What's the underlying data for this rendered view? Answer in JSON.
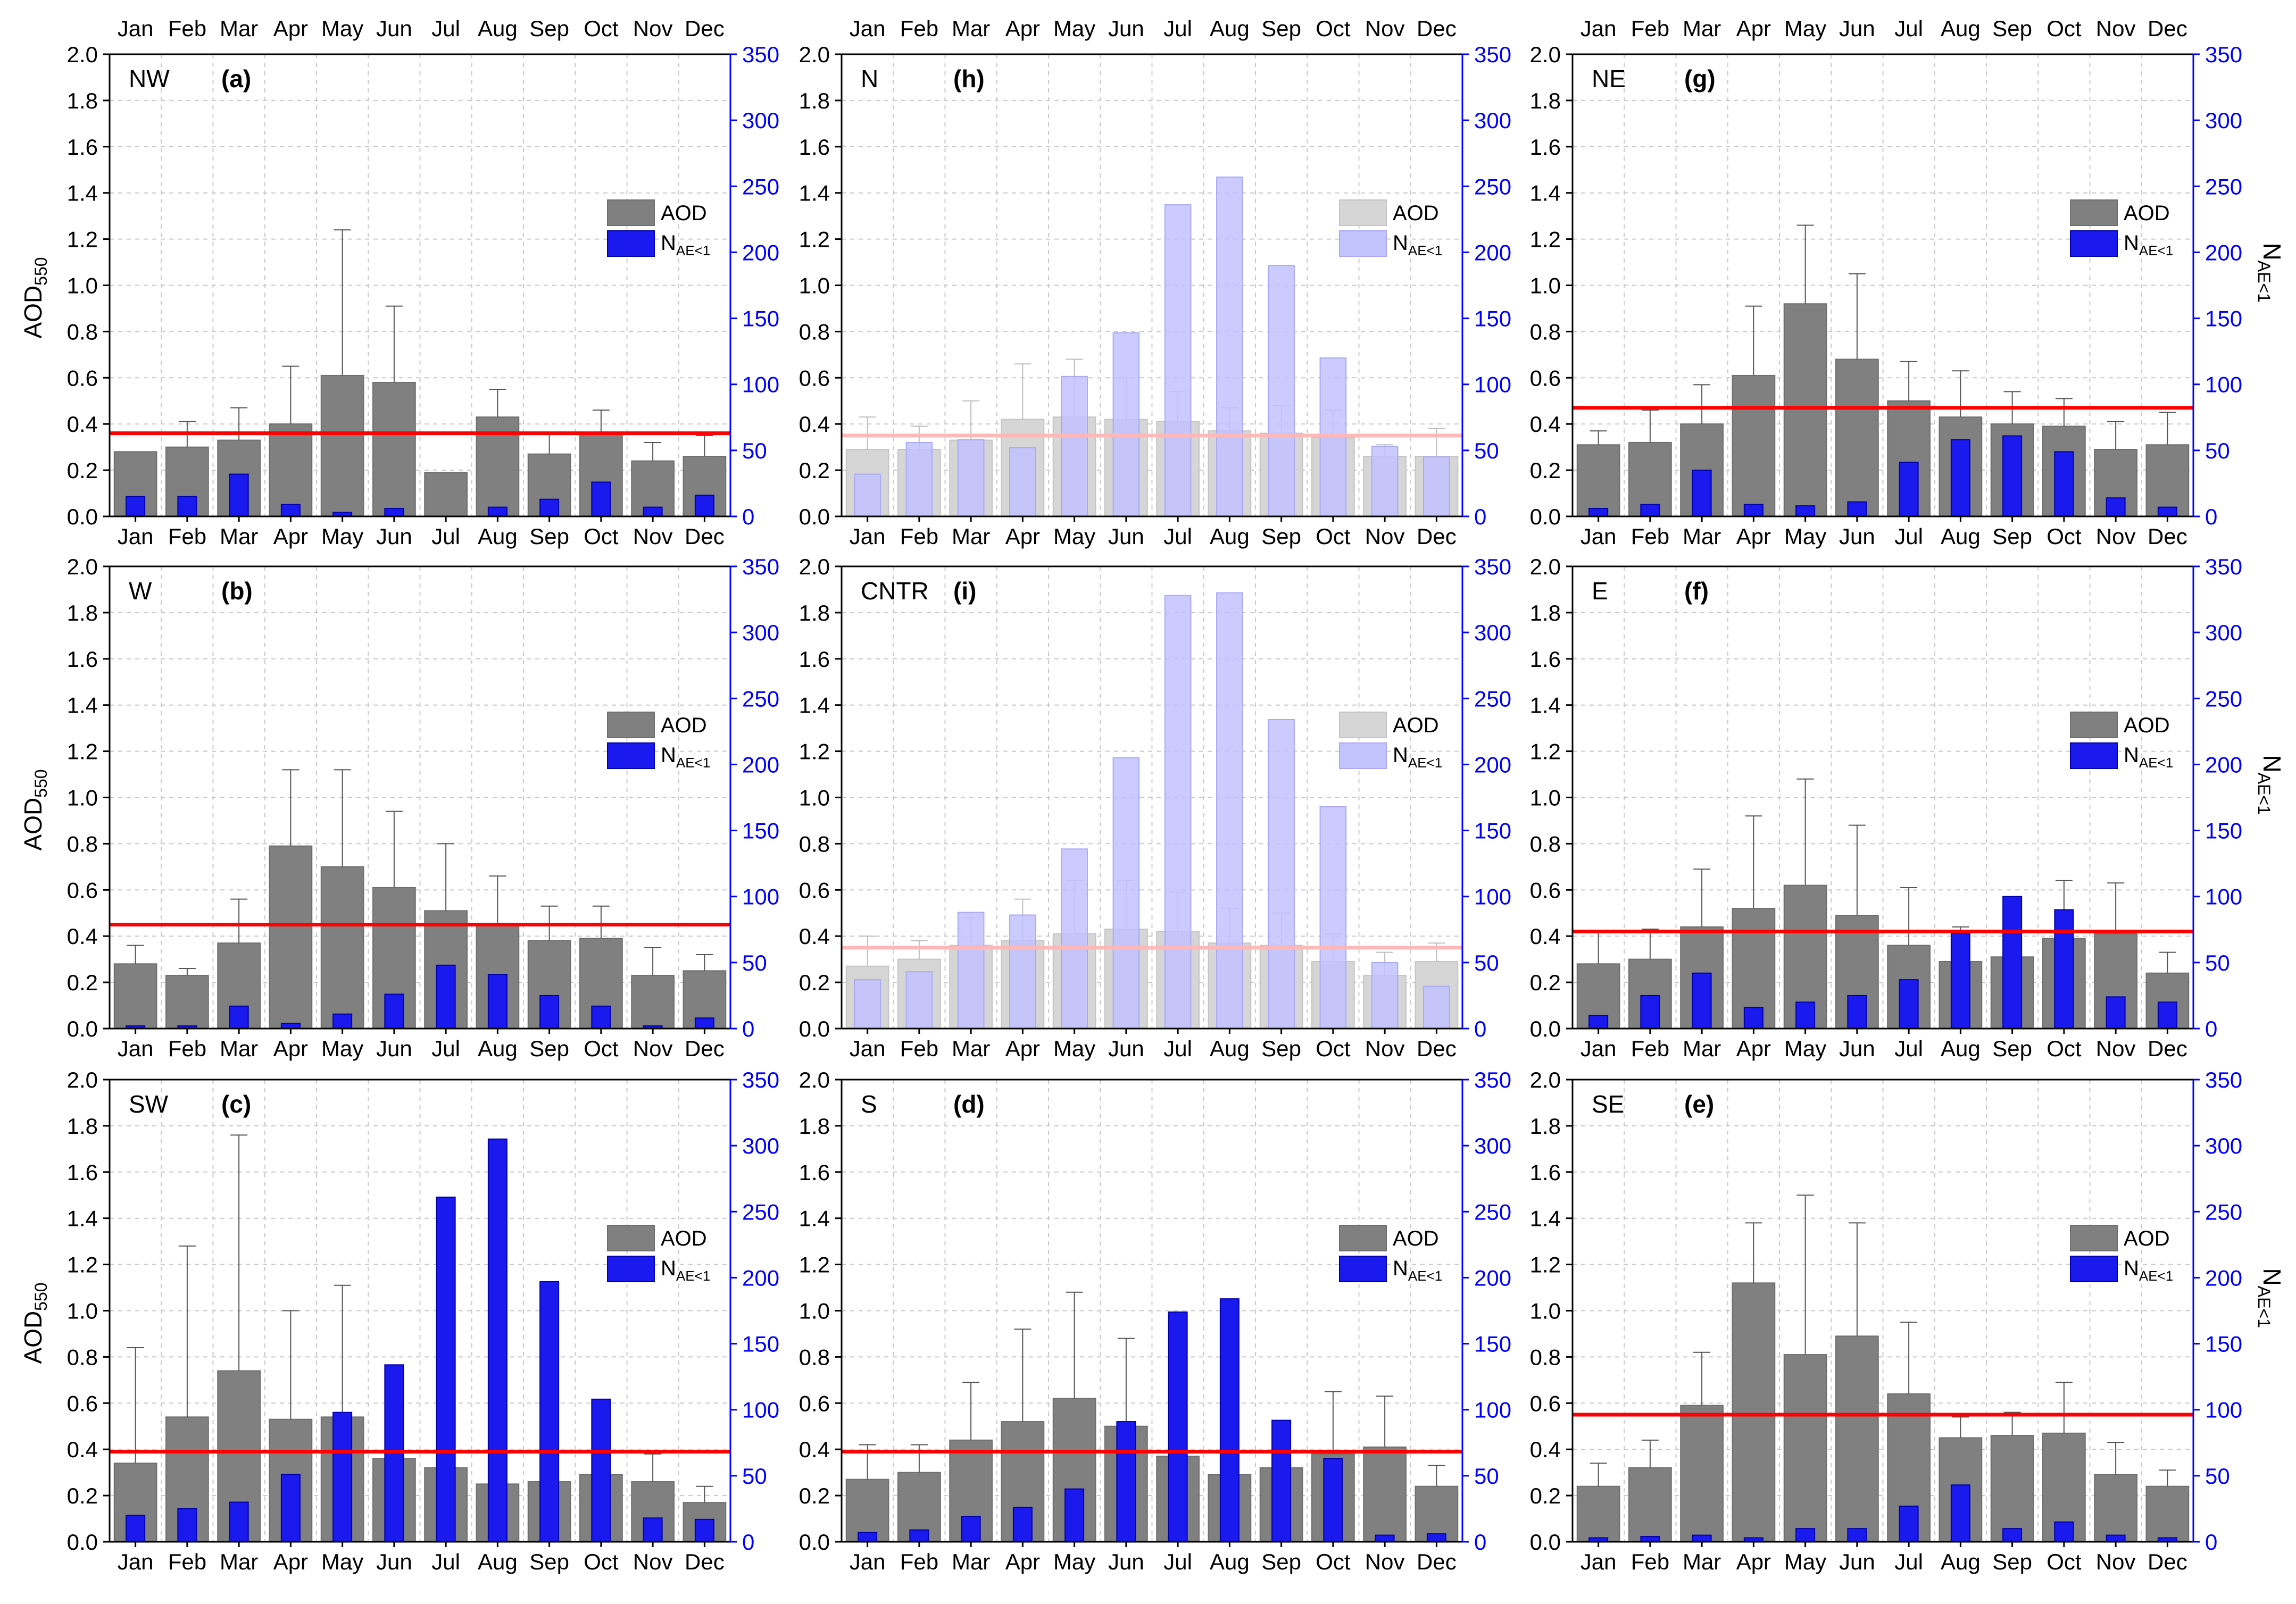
{
  "chart_data": {
    "type": "bar",
    "months": [
      "Jan",
      "Feb",
      "Mar",
      "Apr",
      "May",
      "Jun",
      "Jul",
      "Aug",
      "Sep",
      "Oct",
      "Nov",
      "Dec"
    ],
    "left_axis": {
      "label": "AOD",
      "label_sub": "550",
      "ylim": [
        0,
        2.0
      ],
      "ticks": [
        "0.0",
        "0.2",
        "0.4",
        "0.6",
        "0.8",
        "1.0",
        "1.2",
        "1.4",
        "1.6",
        "1.8",
        "2.0"
      ]
    },
    "right_axis": {
      "label": "N",
      "label_sub": "AE<1",
      "ylim": [
        0,
        350
      ],
      "ticks": [
        "0",
        "50",
        "100",
        "150",
        "200",
        "250",
        "300",
        "350"
      ],
      "color": "#0000ff"
    },
    "legend": {
      "aod": "AOD",
      "n": "N",
      "n_sub": "AE<1",
      "placement": "right"
    },
    "colors": {
      "aod": "#808080",
      "n": "#1a1aee",
      "mean_line": "#ff0000",
      "aod_faded": "#d6d6d6",
      "n_faded": "#c2c2ff",
      "mean_faded": "#ffb8b8"
    },
    "panels": [
      {
        "region": "NW",
        "tag": "(a)",
        "row": 0,
        "col": 0,
        "faded": false,
        "mean": 0.36,
        "aod": [
          0.28,
          0.3,
          0.33,
          0.4,
          0.61,
          0.58,
          0.19,
          0.43,
          0.27,
          0.36,
          0.24,
          0.26
        ],
        "err": [
          0.28,
          0.41,
          0.47,
          0.65,
          1.24,
          0.91,
          0.19,
          0.55,
          0.36,
          0.46,
          0.32,
          0.35
        ],
        "n": [
          15,
          15,
          32,
          9,
          3,
          6,
          0,
          7,
          13,
          26,
          7,
          16
        ]
      },
      {
        "region": "N",
        "tag": "(h)",
        "row": 0,
        "col": 1,
        "faded": true,
        "mean": 0.35,
        "aod": [
          0.29,
          0.29,
          0.33,
          0.42,
          0.43,
          0.42,
          0.41,
          0.37,
          0.36,
          0.34,
          0.26,
          0.26
        ],
        "err": [
          0.43,
          0.39,
          0.5,
          0.66,
          0.68,
          0.6,
          0.54,
          0.47,
          0.48,
          0.46,
          0.31,
          0.38
        ],
        "n": [
          32,
          56,
          58,
          52,
          106,
          139,
          236,
          257,
          190,
          120,
          53,
          45
        ]
      },
      {
        "region": "NE",
        "tag": "(g)",
        "row": 0,
        "col": 2,
        "faded": false,
        "mean": 0.47,
        "aod": [
          0.31,
          0.32,
          0.4,
          0.61,
          0.92,
          0.68,
          0.5,
          0.43,
          0.4,
          0.39,
          0.29,
          0.31
        ],
        "err": [
          0.37,
          0.46,
          0.57,
          0.91,
          1.26,
          1.05,
          0.67,
          0.63,
          0.54,
          0.51,
          0.41,
          0.45
        ],
        "n": [
          6,
          9,
          35,
          9,
          8,
          11,
          41,
          58,
          61,
          49,
          14,
          7
        ]
      },
      {
        "region": "W",
        "tag": "(b)",
        "row": 1,
        "col": 0,
        "faded": false,
        "mean": 0.45,
        "aod": [
          0.28,
          0.23,
          0.37,
          0.79,
          0.7,
          0.61,
          0.51,
          0.45,
          0.38,
          0.39,
          0.23,
          0.25
        ],
        "err": [
          0.36,
          0.26,
          0.56,
          1.12,
          1.12,
          0.94,
          0.8,
          0.66,
          0.53,
          0.53,
          0.35,
          0.32
        ],
        "n": [
          2,
          2,
          17,
          4,
          11,
          26,
          48,
          41,
          25,
          17,
          2,
          8
        ]
      },
      {
        "region": "CNTR",
        "tag": "(i)",
        "row": 1,
        "col": 1,
        "faded": true,
        "mean": 0.35,
        "aod": [
          0.27,
          0.3,
          0.36,
          0.38,
          0.41,
          0.43,
          0.42,
          0.37,
          0.36,
          0.29,
          0.23,
          0.29
        ],
        "err": [
          0.4,
          0.38,
          0.48,
          0.56,
          0.64,
          0.64,
          0.59,
          0.52,
          0.5,
          0.41,
          0.33,
          0.37
        ],
        "n": [
          37,
          43,
          88,
          86,
          136,
          205,
          328,
          330,
          234,
          168,
          50,
          32
        ]
      },
      {
        "region": "E",
        "tag": "(f)",
        "row": 1,
        "col": 2,
        "faded": false,
        "mean": 0.42,
        "aod": [
          0.28,
          0.3,
          0.44,
          0.52,
          0.62,
          0.49,
          0.36,
          0.29,
          0.31,
          0.39,
          0.41,
          0.24
        ],
        "err": [
          0.42,
          0.43,
          0.69,
          0.92,
          1.08,
          0.88,
          0.61,
          0.44,
          0.4,
          0.64,
          0.63,
          0.33
        ],
        "n": [
          10,
          25,
          42,
          16,
          20,
          25,
          37,
          72,
          100,
          90,
          24,
          20
        ]
      },
      {
        "region": "SW",
        "tag": "(c)",
        "row": 2,
        "col": 0,
        "faded": false,
        "mean": 0.39,
        "aod": [
          0.34,
          0.54,
          0.74,
          0.53,
          0.54,
          0.36,
          0.32,
          0.25,
          0.26,
          0.29,
          0.26,
          0.17
        ],
        "err": [
          0.84,
          1.28,
          1.76,
          1.0,
          1.11,
          0.36,
          0.62,
          0.25,
          0.36,
          0.5,
          0.38,
          0.24
        ],
        "n": [
          20,
          25,
          30,
          51,
          98,
          134,
          261,
          305,
          197,
          108,
          18,
          17
        ]
      },
      {
        "region": "S",
        "tag": "(d)",
        "row": 2,
        "col": 1,
        "faded": false,
        "mean": 0.39,
        "aod": [
          0.27,
          0.3,
          0.44,
          0.52,
          0.62,
          0.5,
          0.37,
          0.29,
          0.32,
          0.38,
          0.41,
          0.24
        ],
        "err": [
          0.42,
          0.42,
          0.69,
          0.92,
          1.08,
          0.88,
          0.61,
          0.44,
          0.44,
          0.65,
          0.63,
          0.33
        ],
        "n": [
          7,
          9,
          19,
          26,
          40,
          91,
          174,
          184,
          92,
          63,
          5,
          6
        ]
      },
      {
        "region": "SE",
        "tag": "(e)",
        "row": 2,
        "col": 2,
        "faded": false,
        "mean": 0.55,
        "aod": [
          0.24,
          0.32,
          0.59,
          1.12,
          0.81,
          0.89,
          0.64,
          0.45,
          0.46,
          0.47,
          0.29,
          0.24
        ],
        "err": [
          0.34,
          0.44,
          0.82,
          1.38,
          1.5,
          1.38,
          0.95,
          0.54,
          0.56,
          0.69,
          0.43,
          0.31
        ],
        "n": [
          3,
          4,
          5,
          3,
          10,
          10,
          27,
          43,
          10,
          15,
          5,
          3
        ]
      }
    ]
  }
}
